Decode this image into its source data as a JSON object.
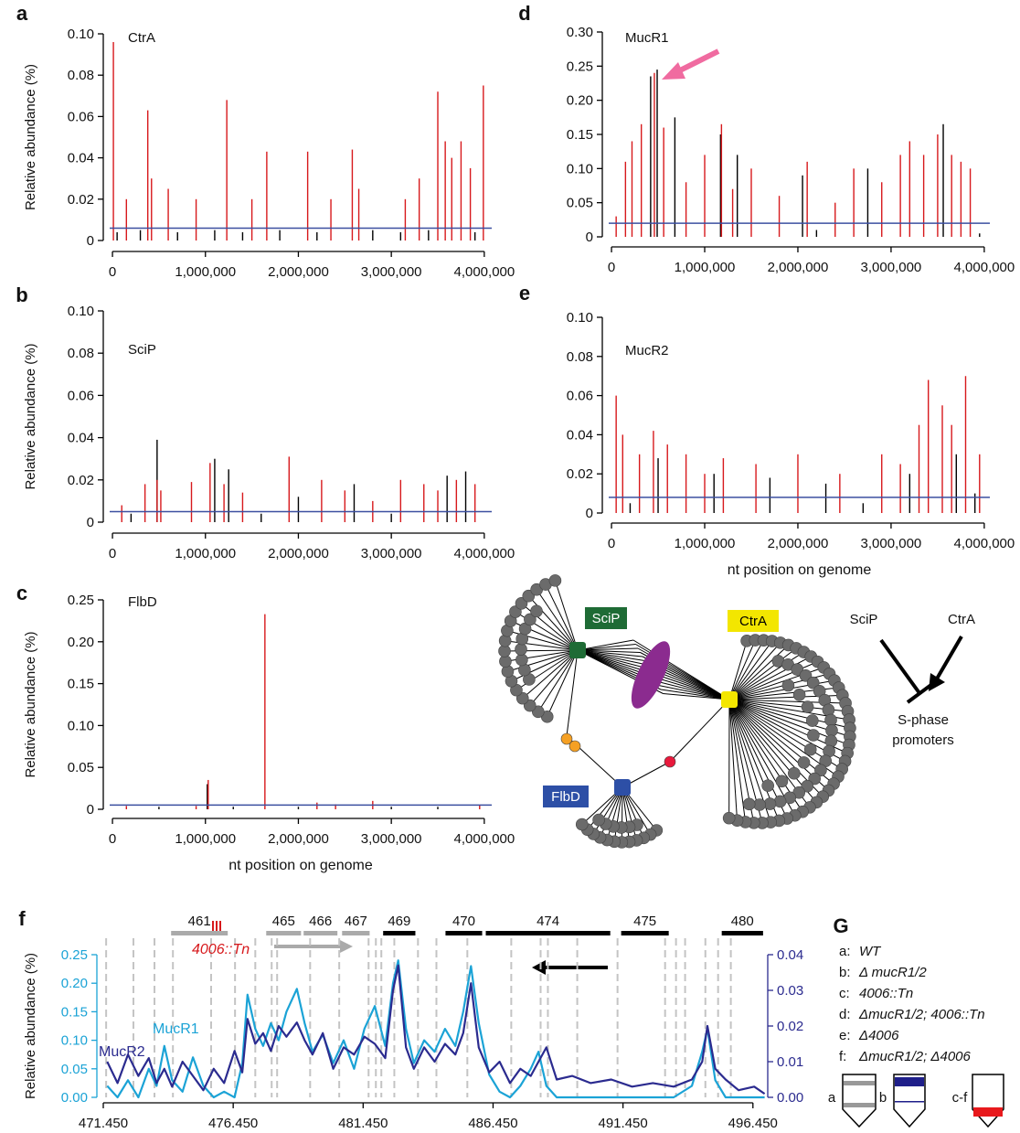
{
  "chart_data": [
    {
      "type": "spike",
      "panel": "a",
      "title": "CtrA",
      "ylabel": "Relative abundance (%)",
      "xlim": [
        -30000,
        4080000
      ],
      "xticks": [
        0,
        {
          "value": 1000000,
          "label": "1,000,000"
        },
        {
          "value": 2000000,
          "label": "2,000,000"
        },
        {
          "value": 3000000,
          "label": "3,000,000"
        },
        {
          "value": 4000000,
          "label": "4,000,000"
        }
      ],
      "ylim": [
        0,
        0.1
      ],
      "yticks": [
        0,
        0.02,
        0.04,
        0.06,
        0.08,
        {
          "value": 0.1,
          "label": "0.10"
        }
      ],
      "threshold": 0.006,
      "threshold_color": "#3b4fa0",
      "series": [
        {
          "color": "#000000",
          "x": [
            50000,
            300000,
            700000,
            1100000,
            1400000,
            1800000,
            2200000,
            2800000,
            3100000,
            3400000,
            3900000
          ],
          "values": [
            0.004,
            0.005,
            0.004,
            0.005,
            0.004,
            0.005,
            0.004,
            0.005,
            0.004,
            0.005,
            0.004
          ]
        },
        {
          "color": "#d7191c",
          "x": [
            10000,
            150000,
            380000,
            420000,
            600000,
            900000,
            1230000,
            1500000,
            1660000,
            2100000,
            2350000,
            2580000,
            2650000,
            3150000,
            3300000,
            3500000,
            3580000,
            3650000,
            3750000,
            3850000,
            3990000
          ],
          "values": [
            0.096,
            0.02,
            0.063,
            0.03,
            0.025,
            0.02,
            0.068,
            0.02,
            0.043,
            0.043,
            0.02,
            0.044,
            0.025,
            0.02,
            0.03,
            0.072,
            0.048,
            0.04,
            0.048,
            0.035,
            0.075
          ]
        }
      ]
    },
    {
      "type": "spike",
      "panel": "b",
      "title": "SciP",
      "ylabel": "Relative abundance (%)",
      "xlim": [
        -30000,
        4080000
      ],
      "xticks": [
        0,
        {
          "value": 1000000,
          "label": "1,000,000"
        },
        {
          "value": 2000000,
          "label": "2,000,000"
        },
        {
          "value": 3000000,
          "label": "3,000,000"
        },
        {
          "value": 4000000,
          "label": "4,000,000"
        }
      ],
      "ylim": [
        0,
        0.1
      ],
      "yticks": [
        0,
        0.02,
        0.04,
        0.06,
        0.08,
        {
          "value": 0.1,
          "label": "0.10"
        }
      ],
      "threshold": 0.005,
      "threshold_color": "#3b4fa0",
      "series": [
        {
          "color": "#000000",
          "x": [
            480000,
            1100000,
            1250000,
            2000000,
            2600000,
            3600000,
            3800000,
            200000,
            1600000,
            3000000
          ],
          "values": [
            0.039,
            0.03,
            0.025,
            0.012,
            0.018,
            0.022,
            0.024,
            0.004,
            0.004,
            0.004
          ]
        },
        {
          "color": "#d7191c",
          "x": [
            100000,
            350000,
            480000,
            520000,
            850000,
            1050000,
            1200000,
            1400000,
            1900000,
            2250000,
            2500000,
            2800000,
            3100000,
            3350000,
            3500000,
            3700000,
            3900000
          ],
          "values": [
            0.008,
            0.018,
            0.02,
            0.015,
            0.019,
            0.028,
            0.018,
            0.014,
            0.031,
            0.02,
            0.015,
            0.01,
            0.02,
            0.018,
            0.015,
            0.02,
            0.018
          ]
        }
      ]
    },
    {
      "type": "spike",
      "panel": "c",
      "title": "FlbD",
      "ylabel": "Relative abundance (%)",
      "xlabel": "nt position on genome",
      "xlim": [
        -30000,
        4080000
      ],
      "xticks": [
        0,
        {
          "value": 1000000,
          "label": "1,000,000"
        },
        {
          "value": 2000000,
          "label": "2,000,000"
        },
        {
          "value": 3000000,
          "label": "3,000,000"
        },
        {
          "value": 4000000,
          "label": "4,000,000"
        }
      ],
      "ylim": [
        0,
        0.25
      ],
      "yticks": [
        0,
        0.05,
        {
          "value": 0.1,
          "label": "0.10"
        },
        0.15,
        {
          "value": 0.2,
          "label": "0.20"
        },
        0.25
      ],
      "threshold": 0.005,
      "threshold_color": "#3b4fa0",
      "series": [
        {
          "color": "#000000",
          "x": [
            1020000,
            500000,
            1300000,
            2000000,
            3000000,
            3500000
          ],
          "values": [
            0.03,
            0.003,
            0.003,
            0.003,
            0.003,
            0.003
          ]
        },
        {
          "color": "#d7191c",
          "x": [
            1030000,
            1640000,
            2200000,
            2400000,
            2800000,
            150000,
            900000,
            3950000
          ],
          "values": [
            0.035,
            0.233,
            0.008,
            0.006,
            0.01,
            0.004,
            0.004,
            0.005
          ]
        }
      ]
    },
    {
      "type": "spike",
      "panel": "d",
      "title": "MucR1",
      "ylabel": "",
      "xlim": [
        -30000,
        4060000
      ],
      "xticks": [
        0,
        {
          "value": 1000000,
          "label": "1,000,000"
        },
        {
          "value": 2000000,
          "label": "2,000,000"
        },
        {
          "value": 3000000,
          "label": "3,000,000"
        },
        {
          "value": 4000000,
          "label": "4,000,000"
        }
      ],
      "ylim": [
        0,
        0.3
      ],
      "yticks": [
        0,
        0.05,
        {
          "value": 0.1,
          "label": "0.10"
        },
        0.15,
        {
          "value": 0.2,
          "label": "0.20"
        },
        0.25,
        {
          "value": 0.3,
          "label": "0.30"
        }
      ],
      "threshold": 0.02,
      "threshold_color": "#3b4fa0",
      "series": [
        {
          "color": "#000000",
          "x": [
            490000,
            420000,
            680000,
            1170000,
            1350000,
            2050000,
            2750000,
            3560000,
            2200000,
            3950000
          ],
          "values": [
            0.245,
            0.235,
            0.175,
            0.15,
            0.12,
            0.09,
            0.1,
            0.165,
            0.01,
            0.005
          ]
        },
        {
          "color": "#d7191c",
          "x": [
            50000,
            150000,
            220000,
            320000,
            460000,
            560000,
            800000,
            1000000,
            1180000,
            1300000,
            1500000,
            1800000,
            2100000,
            2400000,
            2600000,
            2900000,
            3100000,
            3200000,
            3350000,
            3500000,
            3650000,
            3750000,
            3850000
          ],
          "values": [
            0.03,
            0.11,
            0.14,
            0.165,
            0.24,
            0.16,
            0.08,
            0.12,
            0.165,
            0.07,
            0.1,
            0.06,
            0.11,
            0.05,
            0.1,
            0.08,
            0.12,
            0.14,
            0.12,
            0.15,
            0.12,
            0.11,
            0.1
          ]
        }
      ]
    },
    {
      "type": "spike",
      "panel": "e",
      "title": "MucR2",
      "ylabel": "",
      "xlabel": "nt position on genome",
      "xlim": [
        -30000,
        4060000
      ],
      "xticks": [
        0,
        {
          "value": 1000000,
          "label": "1,000,000"
        },
        {
          "value": 2000000,
          "label": "2,000,000"
        },
        {
          "value": 3000000,
          "label": "3,000,000"
        },
        {
          "value": 4000000,
          "label": "4,000,000"
        }
      ],
      "ylim": [
        0,
        0.1
      ],
      "yticks": [
        0,
        0.02,
        0.04,
        0.06,
        0.08,
        {
          "value": 0.1,
          "label": "0.10"
        }
      ],
      "threshold": 0.008,
      "threshold_color": "#3b4fa0",
      "series": [
        {
          "color": "#000000",
          "x": [
            500000,
            1100000,
            1700000,
            2300000,
            3200000,
            3700000,
            3900000,
            200000,
            2700000
          ],
          "values": [
            0.028,
            0.02,
            0.018,
            0.015,
            0.02,
            0.03,
            0.01,
            0.005,
            0.005
          ]
        },
        {
          "color": "#d7191c",
          "x": [
            50000,
            120000,
            300000,
            450000,
            600000,
            800000,
            1000000,
            1200000,
            1550000,
            2000000,
            2450000,
            2900000,
            3100000,
            3300000,
            3400000,
            3550000,
            3650000,
            3800000,
            3950000
          ],
          "values": [
            0.06,
            0.04,
            0.03,
            0.042,
            0.035,
            0.03,
            0.02,
            0.028,
            0.025,
            0.03,
            0.02,
            0.03,
            0.025,
            0.045,
            0.068,
            0.055,
            0.045,
            0.07,
            0.03
          ]
        }
      ]
    },
    {
      "type": "line",
      "panel": "f",
      "ylabel": "Relative abundance (%)",
      "xlim": [
        471.45,
        496.95
      ],
      "xticks": [
        {
          "value": 471.45,
          "label": "471.450"
        },
        {
          "value": 476.45,
          "label": "476.450"
        },
        {
          "value": 481.45,
          "label": "481.450"
        },
        {
          "value": 486.45,
          "label": "486.450"
        },
        {
          "value": 491.45,
          "label": "491.450"
        },
        {
          "value": 496.45,
          "label": "496.450"
        }
      ],
      "ylim": [
        0,
        0.25
      ],
      "yticks": [
        {
          "value": 0,
          "label": "0.00"
        },
        0.05,
        {
          "value": 0.1,
          "label": "0.10"
        },
        0.15,
        {
          "value": 0.2,
          "label": "0.20"
        },
        0.25
      ],
      "y2lim": [
        0,
        0.04
      ],
      "y2ticks": [
        {
          "value": 0,
          "label": "0.00"
        },
        0.01,
        0.02,
        0.03,
        0.04
      ],
      "x": [
        471.6,
        472.0,
        472.4,
        472.8,
        473.2,
        473.5,
        473.8,
        474.1,
        474.5,
        474.9,
        475.3,
        475.7,
        476.1,
        476.5,
        476.8,
        477.0,
        477.3,
        477.6,
        477.9,
        478.2,
        478.5,
        478.9,
        479.2,
        479.5,
        479.9,
        480.3,
        480.7,
        481.1,
        481.5,
        481.9,
        482.3,
        482.6,
        482.8,
        483.1,
        483.4,
        483.8,
        484.2,
        484.6,
        485.0,
        485.3,
        485.6,
        485.9,
        486.3,
        486.7,
        487.1,
        487.5,
        487.9,
        488.2,
        488.5,
        488.9,
        489.5,
        490.2,
        491.0,
        491.8,
        492.6,
        493.4,
        494.1,
        494.5,
        494.7,
        495.0,
        495.4,
        495.9,
        496.5,
        496.9
      ],
      "series": [
        {
          "name": "MucR1",
          "color": "#1ba3d6",
          "values": [
            0.02,
            0,
            0.03,
            0,
            0.05,
            0.02,
            0.09,
            0.03,
            0.01,
            0.07,
            0.02,
            0,
            0.01,
            0,
            0.06,
            0.18,
            0.12,
            0.09,
            0.13,
            0.1,
            0.15,
            0.19,
            0.13,
            0.08,
            0.11,
            0.06,
            0.1,
            0.05,
            0.12,
            0.16,
            0.09,
            0.2,
            0.24,
            0.12,
            0.06,
            0.1,
            0.08,
            0.12,
            0.09,
            0.15,
            0.23,
            0.13,
            0.04,
            0.01,
            0,
            0.02,
            0.05,
            0.08,
            0.02,
            0,
            0,
            0,
            0,
            0,
            0,
            0,
            0.02,
            0.08,
            0.12,
            0.03,
            0,
            0,
            0,
            0
          ]
        },
        {
          "name": "MucR2",
          "color": "#2b2b8f",
          "axis": "y2",
          "values": [
            0.01,
            0.004,
            0.012,
            0.006,
            0.011,
            0.004,
            0.008,
            0.003,
            0.01,
            0.006,
            0.002,
            0.008,
            0.004,
            0.013,
            0.007,
            0.022,
            0.015,
            0.018,
            0.013,
            0.02,
            0.017,
            0.021,
            0.016,
            0.012,
            0.018,
            0.008,
            0.014,
            0.012,
            0.017,
            0.015,
            0.011,
            0.03,
            0.037,
            0.014,
            0.008,
            0.014,
            0.01,
            0.015,
            0.012,
            0.018,
            0.032,
            0.014,
            0.007,
            0.01,
            0.004,
            0.008,
            0.006,
            0.01,
            0.014,
            0.005,
            0.006,
            0.004,
            0.005,
            0.003,
            0.004,
            0.003,
            0.005,
            0.01,
            0.02,
            0.008,
            0.005,
            0.002,
            0.003,
            0.001
          ]
        }
      ],
      "genes": [
        {
          "label": "461",
          "start": 474.06,
          "end": 476.24,
          "color": "#aaaaaa"
        },
        {
          "label": "465",
          "start": 477.72,
          "end": 479.06,
          "color": "#aaaaaa"
        },
        {
          "label": "466",
          "start": 479.16,
          "end": 480.46,
          "color": "#aaaaaa"
        },
        {
          "label": "467",
          "start": 480.64,
          "end": 481.7,
          "color": "#aaaaaa"
        },
        {
          "label": "469",
          "start": 482.22,
          "end": 483.46,
          "color": "#000000"
        },
        {
          "label": "470",
          "start": 484.62,
          "end": 486.03,
          "color": "#000000"
        },
        {
          "label": "474",
          "start": 486.17,
          "end": 490.96,
          "color": "#000000"
        },
        {
          "label": "475",
          "start": 491.38,
          "end": 493.21,
          "color": "#000000"
        },
        {
          "label": "480",
          "start": 495.25,
          "end": 496.84,
          "color": "#000000"
        }
      ],
      "annotation": "4006::Tn",
      "motif_positions": [
        471.56,
        472.61,
        473.42,
        474.13,
        475.6,
        476.52,
        477.3,
        477.93,
        478.14,
        479.41,
        480.53,
        481.66,
        481.94,
        482.15,
        482.65,
        483.56,
        484.27,
        485.46,
        487.15,
        488.28,
        488.56,
        489.69,
        491.24,
        493.07,
        493.49,
        493.84,
        494.62,
        495.11,
        495.6
      ]
    }
  ],
  "network": {
    "nodes": [
      {
        "label": "SciP",
        "color": "#1e6b35"
      },
      {
        "label": "CtrA",
        "color": "#f3e600"
      },
      {
        "label": "FlbD",
        "color": "#2d4fa6"
      }
    ]
  },
  "schematic": {
    "repressor": "SciP",
    "activator": "CtrA",
    "target": [
      "S-phase",
      "promoters"
    ]
  },
  "panel_g": {
    "panel": "G",
    "items": [
      {
        "key": "a:",
        "label": "WT"
      },
      {
        "key": "b:",
        "label": "Δ mucR1/2"
      },
      {
        "key": "c:",
        "label": "4006::Tn"
      },
      {
        "key": "d:",
        "label": "ΔmucR1/2; 4006::Tn"
      },
      {
        "key": "e:",
        "label": "Δ4006"
      },
      {
        "key": "f:",
        "label": "ΔmucR1/2; Δ4006"
      }
    ],
    "tubes": [
      "a",
      "b",
      "c-f"
    ]
  }
}
